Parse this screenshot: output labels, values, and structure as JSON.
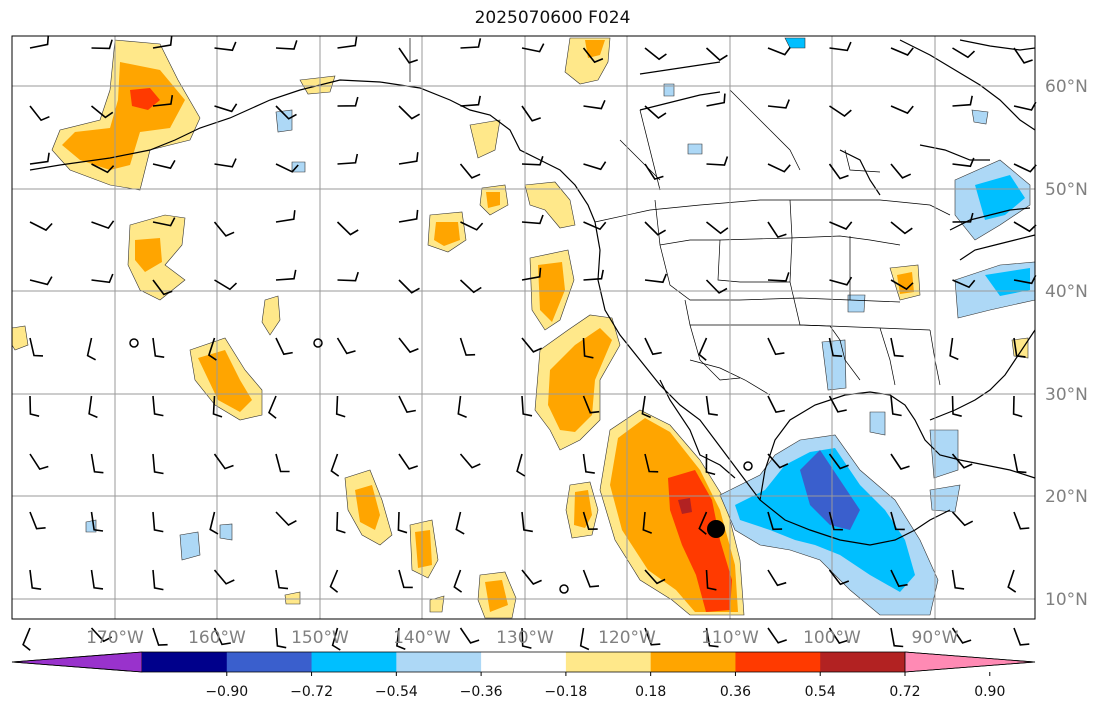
{
  "title": "2025070600 F024",
  "latitude_labels": [
    "60°N",
    "50°N",
    "40°N",
    "30°N",
    "20°N",
    "10°N"
  ],
  "longitude_labels": [
    "170°W",
    "160°W",
    "150°W",
    "140°W",
    "130°W",
    "120°W",
    "110°W",
    "100°W",
    "90°W"
  ],
  "colorbar": {
    "ticks": [
      "−0.90",
      "−0.72",
      "−0.54",
      "−0.36",
      "−0.18",
      "0.18",
      "0.36",
      "0.54",
      "0.72",
      "0.90"
    ],
    "colors": [
      "#9932CC",
      "#00008B",
      "#3A5FCD",
      "#00BFFF",
      "#ADD8F6",
      "#FFFFFF",
      "#FFE88A",
      "#FFA500",
      "#FF3A00",
      "#B22222",
      "#FF8AB4"
    ]
  },
  "colors": {
    "light_orange": "#FFE88A",
    "orange": "#FFA500",
    "red_orange": "#FF3A00",
    "dark_red": "#B22222",
    "light_blue": "#ADD8F6",
    "deep_sky_blue": "#00BFFF",
    "royal_blue": "#3A5FCD",
    "grid": "#9a9a9a"
  },
  "marker": {
    "name": "storm-center-marker",
    "lon": "~110.5°W",
    "lat": "~17°N"
  }
}
